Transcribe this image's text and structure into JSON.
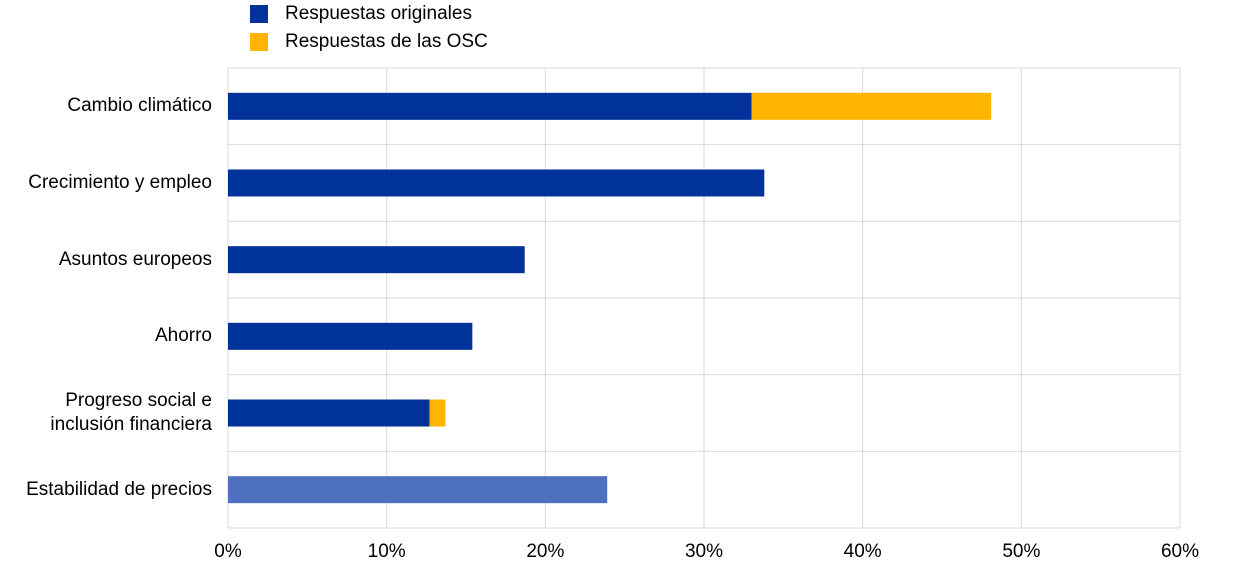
{
  "chart_data": {
    "type": "stacked-bar-horizontal",
    "categories": [
      "Cambio climático",
      "Crecimiento y empleo",
      "Asuntos europeos",
      "Ahorro",
      "Progreso social e inclusión financiera",
      "Estabilidad de precios"
    ],
    "series": [
      {
        "name": "Respuestas originales",
        "color": "#003299",
        "colors": [
          "#003299",
          "#003299",
          "#003299",
          "#003299",
          "#003299",
          "#4f6fbf"
        ],
        "values": [
          33.0,
          33.8,
          18.7,
          15.4,
          12.7,
          23.9
        ]
      },
      {
        "name": "Respuestas de las OSC",
        "color": "#ffb400",
        "values": [
          15.1,
          0,
          0,
          0,
          1.0,
          0
        ]
      }
    ],
    "xlim": [
      0,
      60
    ],
    "xticks": [
      {
        "value": 0,
        "label": "0%"
      },
      {
        "value": 10,
        "label": "10%"
      },
      {
        "value": 20,
        "label": "20%"
      },
      {
        "value": 30,
        "label": "30%"
      },
      {
        "value": 40,
        "label": "40%"
      },
      {
        "value": 50,
        "label": "50%"
      },
      {
        "value": 60,
        "label": "60%"
      }
    ],
    "grid": true
  }
}
